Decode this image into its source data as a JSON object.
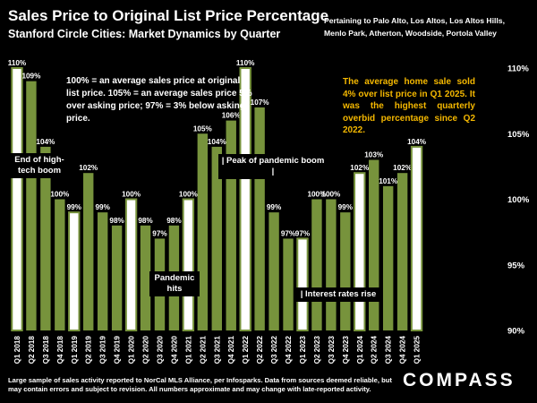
{
  "header": {
    "title": "Sales Price to Original List Price Percentage",
    "subtitle": "Stanford Circle Cities:  Market Dynamics by Quarter",
    "region": "Pertaining to Palo Alto, Los Altos, Los Altos Hills, Menlo Park, Atherton, Woodside, Portola Valley"
  },
  "note": "100% = an average sales price at original list price. 105% = an average sales price 5% over asking price; 97% = 3% below asking price.",
  "callout": "The average home sale sold 4% over list price in Q1 2025. It was the highest quarterly overbid percentage since Q2 2022.",
  "annotations": {
    "tech_boom": "End of high-tech boom",
    "pandemic_peak": "| Peak of pandemic boom |",
    "pandemic_hits": "Pandemic hits",
    "rates_rise": "| Interest rates rise"
  },
  "footer": "Large sample of sales activity reported to NorCal MLS Alliance, per Infosparks. Data from sources deemed reliable, but may contain errors and subject to revision. All numbers approximate and may change with late-reported activity.",
  "logo": "COMPASS",
  "colors": {
    "bar": "#77933c",
    "highlight_bar": "#ffffff",
    "highlight_border": "#77933c",
    "callout": "#f5b800",
    "background": "#000000"
  },
  "chart_data": {
    "type": "bar",
    "categories": [
      "Q1 2018",
      "Q2 2018",
      "Q3 2018",
      "Q4 2018",
      "Q1 2019",
      "Q2 2019",
      "Q3 2019",
      "Q4 2019",
      "Q1 2020",
      "Q2 2020",
      "Q3 2020",
      "Q4 2020",
      "Q1 2021",
      "Q2 2021",
      "Q3 2021",
      "Q4 2021",
      "Q1 2022",
      "Q2 2022",
      "Q3 2022",
      "Q4 2022",
      "Q1 2023",
      "Q2 2023",
      "Q3 2023",
      "Q4 2023",
      "Q1 2024",
      "Q2 2024",
      "Q3 2024",
      "Q4 2024",
      "Q1 2025"
    ],
    "values": [
      110,
      109,
      104,
      100,
      99,
      102,
      99,
      98,
      100,
      98,
      97,
      98,
      100,
      105,
      104,
      106,
      110,
      107,
      99,
      97,
      97,
      100,
      100,
      99,
      102,
      103,
      101,
      102,
      104
    ],
    "data_labels": [
      "110%",
      "109%",
      "104%",
      "100%",
      "99%",
      "102%",
      "99%",
      "98%",
      "100%",
      "98%",
      "97%",
      "98%",
      "100%",
      "105%",
      "104%",
      "106%",
      "110%",
      "107%",
      "99%",
      "97%",
      "97%",
      "100%",
      "100%",
      "99%",
      "102%",
      "103%",
      "101%",
      "102%",
      "104%"
    ],
    "highlighted": [
      "Q1 2018",
      "Q1 2019",
      "Q1 2020",
      "Q1 2021",
      "Q1 2022",
      "Q1 2023",
      "Q1 2024",
      "Q1 2025"
    ],
    "ylim": [
      90,
      110
    ],
    "y_ticks": [
      "90%",
      "95%",
      "100%",
      "105%",
      "110%"
    ],
    "y_axis_position": "right",
    "grid": false
  }
}
